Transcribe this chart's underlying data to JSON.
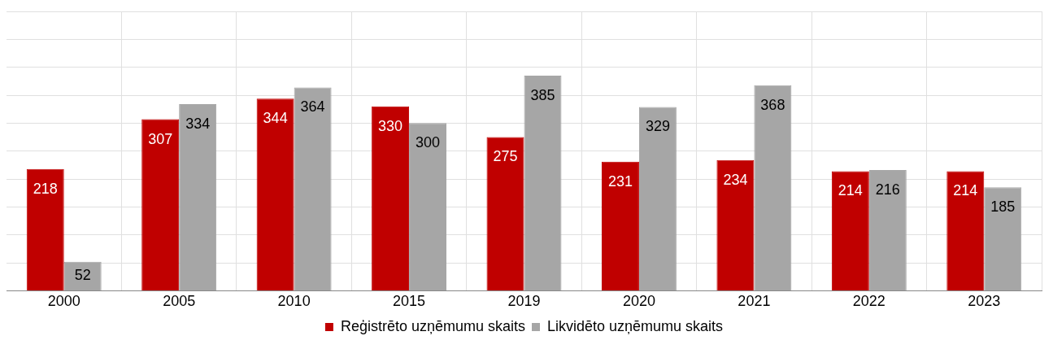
{
  "chart_data": {
    "type": "bar",
    "categories": [
      "2000",
      "2005",
      "2010",
      "2015",
      "2019",
      "2020",
      "2021",
      "2022",
      "2023"
    ],
    "series": [
      {
        "name": "Reģistrēto uzņēmumu skaits",
        "color": "#c00000",
        "values": [
          218,
          307,
          344,
          330,
          275,
          231,
          234,
          214,
          214
        ]
      },
      {
        "name": "Likvidēto uzņēmumu skaits",
        "color": "#a6a6a6",
        "values": [
          52,
          334,
          364,
          300,
          385,
          329,
          368,
          216,
          185
        ]
      }
    ],
    "ylim": [
      0,
      500
    ],
    "yticks": [
      {
        "value": 0,
        "label": null
      },
      {
        "value": 50,
        "label": null
      },
      {
        "value": 100,
        "label": null
      },
      {
        "value": 150,
        "label": null
      },
      {
        "value": 200,
        "label": null
      },
      {
        "value": 250,
        "label": null
      },
      {
        "value": 300,
        "label": null
      },
      {
        "value": 350,
        "label": null
      },
      {
        "value": 400,
        "label": null
      },
      {
        "value": 450,
        "label": null
      },
      {
        "value": 500,
        "label": null
      }
    ],
    "tick_labels": "x",
    "grid": true,
    "legend": "bottom",
    "data_labels": true
  }
}
